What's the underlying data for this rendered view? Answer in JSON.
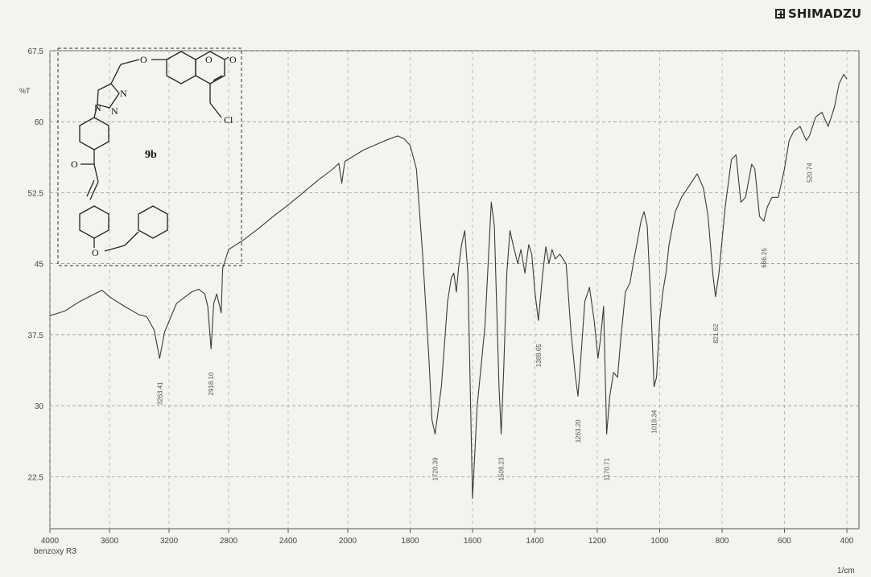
{
  "brand": {
    "name": "SHIMADZU",
    "icon": "shimadzu-cross-logo"
  },
  "chart_data": {
    "type": "line",
    "title": "",
    "sample_name": "benzoxy R3",
    "xlabel": "",
    "x_unit": "1/cm",
    "ylabel": "%T",
    "xlim": [
      4000,
      400
    ],
    "ylim": [
      17,
      67.5
    ],
    "x_ticks": [
      4000,
      3600,
      3200,
      2800,
      2400,
      2000,
      1800,
      1600,
      1400,
      1200,
      1000,
      800,
      600,
      400
    ],
    "y_ticks": [
      22.5,
      30,
      37.5,
      45,
      52.5,
      60,
      67.5
    ],
    "grid": true,
    "series": [
      {
        "points": [
          [
            4000,
            39.5
          ],
          [
            3900,
            40.0
          ],
          [
            3800,
            41.0
          ],
          [
            3700,
            41.8
          ],
          [
            3650,
            42.2
          ],
          [
            3600,
            41.5
          ],
          [
            3500,
            40.5
          ],
          [
            3400,
            39.6
          ],
          [
            3350,
            39.4
          ],
          [
            3300,
            38.0
          ],
          [
            3263,
            35.0
          ],
          [
            3230,
            37.8
          ],
          [
            3150,
            40.8
          ],
          [
            3050,
            42.0
          ],
          [
            3000,
            42.3
          ],
          [
            2960,
            41.8
          ],
          [
            2940,
            40.5
          ],
          [
            2918,
            36.0
          ],
          [
            2900,
            40.8
          ],
          [
            2880,
            41.8
          ],
          [
            2860,
            40.5
          ],
          [
            2850,
            39.8
          ],
          [
            2840,
            44.5
          ],
          [
            2800,
            46.5
          ],
          [
            2700,
            47.5
          ],
          [
            2600,
            48.7
          ],
          [
            2500,
            50.0
          ],
          [
            2400,
            51.2
          ],
          [
            2300,
            52.5
          ],
          [
            2200,
            53.8
          ],
          [
            2100,
            55.0
          ],
          [
            2060,
            55.6
          ],
          [
            2040,
            53.5
          ],
          [
            2020,
            55.8
          ],
          [
            1950,
            57.0
          ],
          [
            1880,
            58.0
          ],
          [
            1840,
            58.5
          ],
          [
            1820,
            58.2
          ],
          [
            1800,
            57.5
          ],
          [
            1780,
            55.0
          ],
          [
            1760,
            46.0
          ],
          [
            1740,
            35.0
          ],
          [
            1730,
            28.5
          ],
          [
            1720,
            27.0
          ],
          [
            1700,
            32.0
          ],
          [
            1680,
            41.0
          ],
          [
            1668,
            43.5
          ],
          [
            1660,
            44.0
          ],
          [
            1652,
            42.0
          ],
          [
            1645,
            44.5
          ],
          [
            1635,
            47.0
          ],
          [
            1625,
            48.5
          ],
          [
            1615,
            44.0
          ],
          [
            1600,
            20.2
          ],
          [
            1585,
            30.0
          ],
          [
            1570,
            35.0
          ],
          [
            1560,
            38.5
          ],
          [
            1550,
            45.0
          ],
          [
            1540,
            51.5
          ],
          [
            1530,
            49.0
          ],
          [
            1515,
            32.0
          ],
          [
            1508,
            27.0
          ],
          [
            1500,
            34.0
          ],
          [
            1490,
            44.0
          ],
          [
            1480,
            48.5
          ],
          [
            1470,
            47.0
          ],
          [
            1455,
            45.0
          ],
          [
            1445,
            46.5
          ],
          [
            1432,
            44.0
          ],
          [
            1420,
            47.0
          ],
          [
            1410,
            46.0
          ],
          [
            1400,
            42.0
          ],
          [
            1389,
            39.0
          ],
          [
            1375,
            44.0
          ],
          [
            1365,
            46.8
          ],
          [
            1355,
            45.0
          ],
          [
            1345,
            46.5
          ],
          [
            1335,
            45.5
          ],
          [
            1320,
            46.0
          ],
          [
            1300,
            45.0
          ],
          [
            1285,
            38.0
          ],
          [
            1270,
            33.0
          ],
          [
            1262,
            31.0
          ],
          [
            1255,
            34.0
          ],
          [
            1240,
            41.0
          ],
          [
            1225,
            42.5
          ],
          [
            1210,
            39.0
          ],
          [
            1198,
            35.0
          ],
          [
            1190,
            37.0
          ],
          [
            1180,
            40.5
          ],
          [
            1172,
            30.0
          ],
          [
            1170,
            27.0
          ],
          [
            1160,
            31.0
          ],
          [
            1148,
            33.5
          ],
          [
            1135,
            33.0
          ],
          [
            1125,
            37.0
          ],
          [
            1110,
            42.0
          ],
          [
            1095,
            43.0
          ],
          [
            1085,
            45.0
          ],
          [
            1060,
            49.5
          ],
          [
            1050,
            50.5
          ],
          [
            1040,
            49.0
          ],
          [
            1030,
            42.0
          ],
          [
            1018,
            32.0
          ],
          [
            1010,
            33.0
          ],
          [
            1000,
            39.0
          ],
          [
            990,
            42.0
          ],
          [
            980,
            44.0
          ],
          [
            970,
            47.0
          ],
          [
            950,
            50.5
          ],
          [
            930,
            52.0
          ],
          [
            900,
            53.5
          ],
          [
            880,
            54.5
          ],
          [
            860,
            53.0
          ],
          [
            845,
            50.0
          ],
          [
            830,
            44.0
          ],
          [
            821,
            41.5
          ],
          [
            810,
            44.0
          ],
          [
            790,
            51.0
          ],
          [
            770,
            56.0
          ],
          [
            755,
            56.5
          ],
          [
            740,
            51.5
          ],
          [
            725,
            52.0
          ],
          [
            705,
            55.5
          ],
          [
            695,
            55.0
          ],
          [
            680,
            50.0
          ],
          [
            666,
            49.5
          ],
          [
            655,
            51.0
          ],
          [
            640,
            52.0
          ],
          [
            620,
            52.0
          ],
          [
            600,
            55.0
          ],
          [
            585,
            58.0
          ],
          [
            570,
            59.0
          ],
          [
            550,
            59.5
          ],
          [
            530,
            58.0
          ],
          [
            520,
            58.5
          ],
          [
            500,
            60.5
          ],
          [
            480,
            61.0
          ],
          [
            460,
            59.5
          ],
          [
            440,
            61.5
          ],
          [
            425,
            64.0
          ],
          [
            410,
            65.0
          ],
          [
            400,
            64.5
          ]
        ]
      }
    ],
    "peak_labels": [
      {
        "x": 3263,
        "text": "3263.41"
      },
      {
        "x": 2918,
        "text": "2918.10"
      },
      {
        "x": 1720,
        "text": "1720.39"
      },
      {
        "x": 1508,
        "text": "1508.23"
      },
      {
        "x": 1389,
        "text": "1389.65"
      },
      {
        "x": 1262,
        "text": "1263.20"
      },
      {
        "x": 1170,
        "text": "1170.71"
      },
      {
        "x": 1018,
        "text": "1018.34"
      },
      {
        "x": 821,
        "text": "821.62"
      },
      {
        "x": 666,
        "text": "666.25"
      },
      {
        "x": 520,
        "text": "520.74"
      }
    ],
    "inset": {
      "compound_label": "9b",
      "atom_labels": [
        "O",
        "O",
        "O",
        "N",
        "N",
        "N",
        "Cl",
        "O",
        "O"
      ]
    }
  }
}
